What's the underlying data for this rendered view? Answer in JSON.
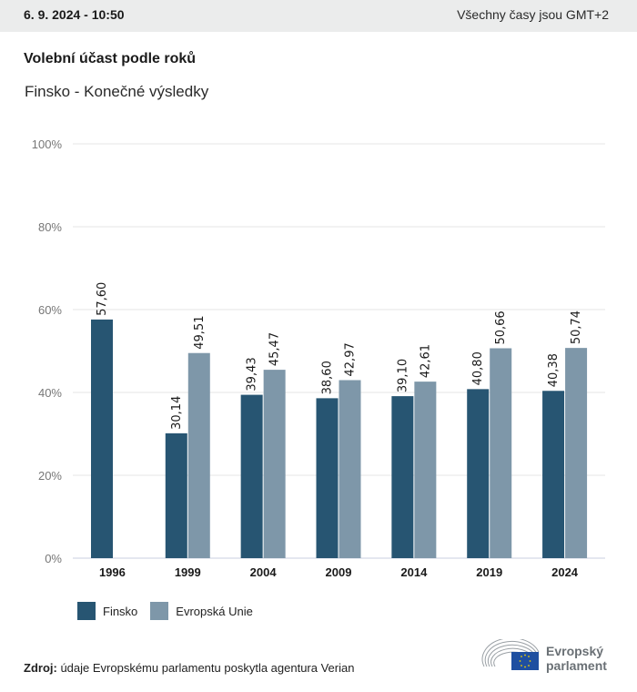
{
  "header": {
    "datetime": "6. 9. 2024 - 10:50",
    "timezone_note": "Všechny časy jsou GMT+2"
  },
  "title": "Volební účast podle roků",
  "subtitle": "Finsko - Konečné výsledky",
  "legend": {
    "items": [
      {
        "label": "Finsko",
        "color": "#275572"
      },
      {
        "label": "Evropská Unie",
        "color": "#7e97a9"
      }
    ]
  },
  "source": {
    "label": "Zdroj:",
    "text": " údaje Evropskému parlamentu poskytla agentura Verian"
  },
  "logo": {
    "line1": "Evropský",
    "line2": "parlament"
  },
  "chart_data": {
    "type": "bar",
    "title": "Volební účast podle roků",
    "subtitle": "Finsko - Konečné výsledky",
    "xlabel": "",
    "ylabel": "",
    "categories": [
      "1996",
      "1999",
      "2004",
      "2009",
      "2014",
      "2019",
      "2024"
    ],
    "series": [
      {
        "name": "Finsko",
        "color": "#275572",
        "values": [
          57.6,
          30.14,
          39.43,
          38.6,
          39.1,
          40.8,
          40.38
        ]
      },
      {
        "name": "Evropská Unie",
        "color": "#7e97a9",
        "values": [
          null,
          49.51,
          45.47,
          42.97,
          42.61,
          50.66,
          50.74
        ]
      }
    ],
    "value_labels": [
      [
        "57,60",
        "30,14",
        "39,43",
        "38,60",
        "39,10",
        "40,80",
        "40,38"
      ],
      [
        null,
        "49,51",
        "45,47",
        "42,97",
        "42,61",
        "50,66",
        "50,74"
      ]
    ],
    "ylim": [
      0,
      100
    ],
    "yticks": [
      0,
      20,
      40,
      60,
      80,
      100
    ],
    "ytick_labels": [
      "0%",
      "20%",
      "40%",
      "60%",
      "80%",
      "100%"
    ],
    "grid": true,
    "legend_position": "bottom-left"
  }
}
